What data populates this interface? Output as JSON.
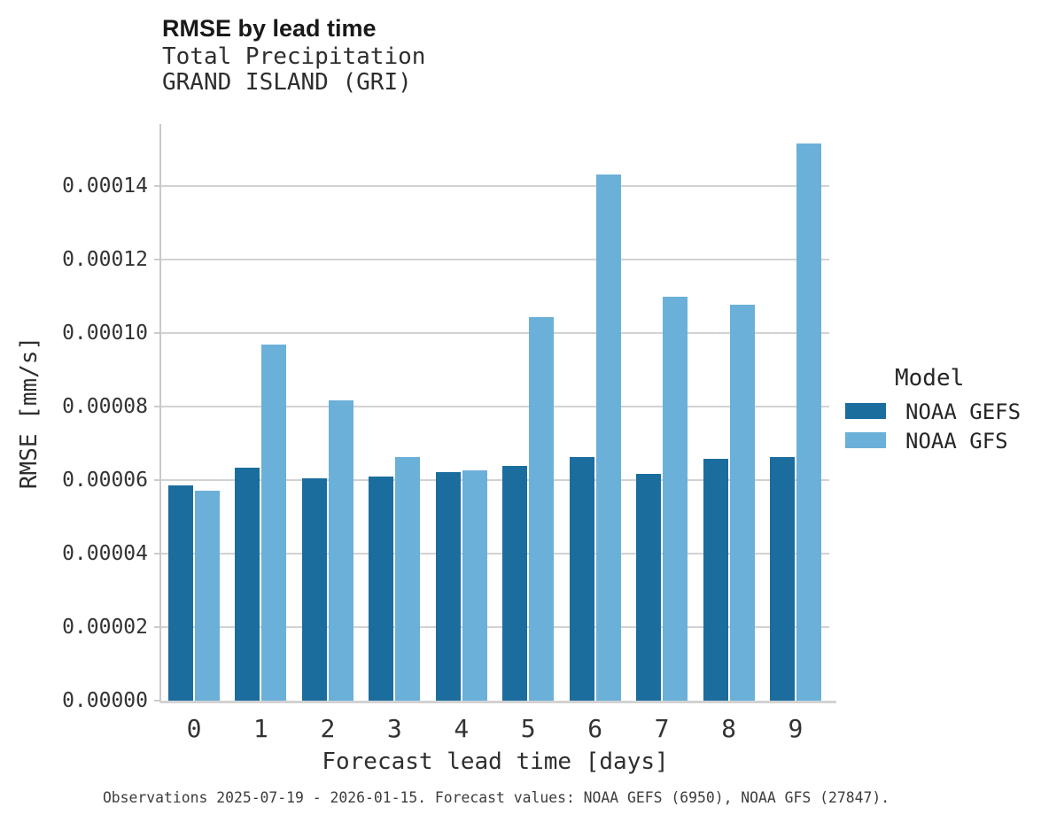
{
  "header": {
    "title": "RMSE by lead time",
    "subtitle_line1": "Total Precipitation",
    "subtitle_line2": "GRAND ISLAND (GRI)"
  },
  "chart_data": {
    "type": "bar",
    "title": "RMSE by lead time",
    "subtitle": "Total Precipitation / GRAND ISLAND (GRI)",
    "xlabel": "Forecast lead time [days]",
    "ylabel": "RMSE [mm/s]",
    "categories": [
      "0",
      "1",
      "2",
      "3",
      "4",
      "5",
      "6",
      "7",
      "8",
      "9"
    ],
    "series": [
      {
        "name": "NOAA GEFS",
        "color": "#1b6d9d",
        "values": [
          5.85e-05,
          6.33e-05,
          6.05e-05,
          6.1e-05,
          6.22e-05,
          6.38e-05,
          6.62e-05,
          6.18e-05,
          6.58e-05,
          6.63e-05
        ]
      },
      {
        "name": "NOAA GFS",
        "color": "#6bb0d9",
        "values": [
          5.7e-05,
          9.68e-05,
          8.17e-05,
          6.62e-05,
          6.27e-05,
          0.0001043,
          0.0001432,
          0.0001098,
          0.0001076,
          0.0001515
        ]
      }
    ],
    "ylim": [
      0,
      0.000157
    ],
    "y_ticks": [
      0,
      2e-05,
      4e-05,
      6e-05,
      8e-05,
      0.0001,
      0.00012,
      0.00014
    ],
    "y_tick_labels": [
      "0.00000",
      "0.00002",
      "0.00004",
      "0.00006",
      "0.00008",
      "0.00010",
      "0.00012",
      "0.00014"
    ],
    "grid": "horizontal gridlines on",
    "grid_color": "#d2d2d2",
    "axis_color": "#c9c9c9",
    "legend_title": "Model",
    "legend_position": "right"
  },
  "caption": "Observations 2025-07-19 - 2026-01-15. Forecast values: NOAA GEFS (6950), NOAA GFS (27847)."
}
